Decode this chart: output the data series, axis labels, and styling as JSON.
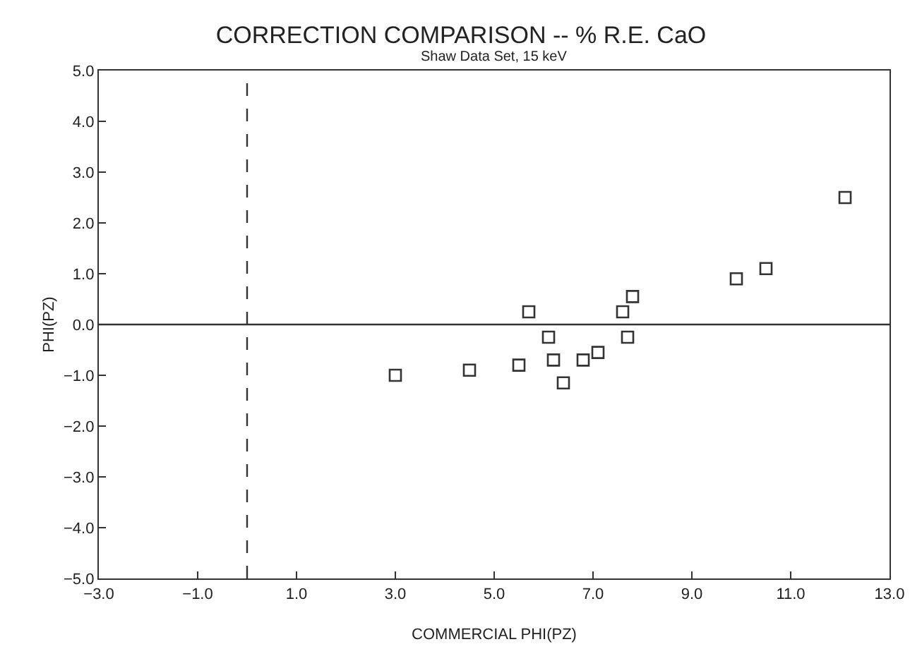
{
  "chart_data": {
    "type": "scatter",
    "title": "CORRECTION COMPARISON -- % R.E. CaO",
    "subtitle": "Shaw Data Set, 15 keV",
    "xlabel": "COMMERCIAL PHI(PZ)",
    "ylabel": "PHI(PZ)",
    "x": [
      3.0,
      4.5,
      5.5,
      5.7,
      6.1,
      6.2,
      6.4,
      6.8,
      7.1,
      7.6,
      7.7,
      7.8,
      9.9,
      10.5,
      12.1
    ],
    "values": [
      -1.0,
      -0.9,
      -0.8,
      0.25,
      -0.25,
      -0.7,
      -1.15,
      -0.7,
      -0.55,
      0.25,
      -0.25,
      0.55,
      0.9,
      1.1,
      2.5
    ],
    "color": "#333333",
    "marker": "square",
    "xlim": [
      -3,
      13
    ],
    "xticks": [
      {
        "value": -3,
        "label": "−3.0"
      },
      {
        "value": -1,
        "label": "−1.0"
      },
      {
        "value": 1,
        "label": "1.0"
      },
      {
        "value": 3,
        "label": "3.0"
      },
      {
        "value": 5,
        "label": "5.0"
      },
      {
        "value": 7,
        "label": "7.0"
      },
      {
        "value": 9,
        "label": "9.0"
      },
      {
        "value": 11,
        "label": "11.0"
      },
      {
        "value": 13,
        "label": "13.0"
      }
    ],
    "ylim": [
      -5,
      5
    ],
    "yticks": [
      {
        "value": -5,
        "label": "−5.0"
      },
      {
        "value": -4,
        "label": "−4.0"
      },
      {
        "value": -3,
        "label": "−3.0"
      },
      {
        "value": -2,
        "label": "−2.0"
      },
      {
        "value": -1,
        "label": "−1.0"
      },
      {
        "value": 0,
        "label": "0.0"
      },
      {
        "value": 1,
        "label": "1.0"
      },
      {
        "value": 2,
        "label": "2.0"
      },
      {
        "value": 3,
        "label": "3.0"
      },
      {
        "value": 4,
        "label": "4.0"
      },
      {
        "value": 5,
        "label": "5.0"
      }
    ],
    "ref_lines": [
      {
        "axis": "x",
        "value": 0,
        "line_style": "dashed",
        "color": "#333333"
      },
      {
        "axis": "y",
        "value": 0,
        "line_style": "solid",
        "color": "#333333"
      }
    ]
  }
}
